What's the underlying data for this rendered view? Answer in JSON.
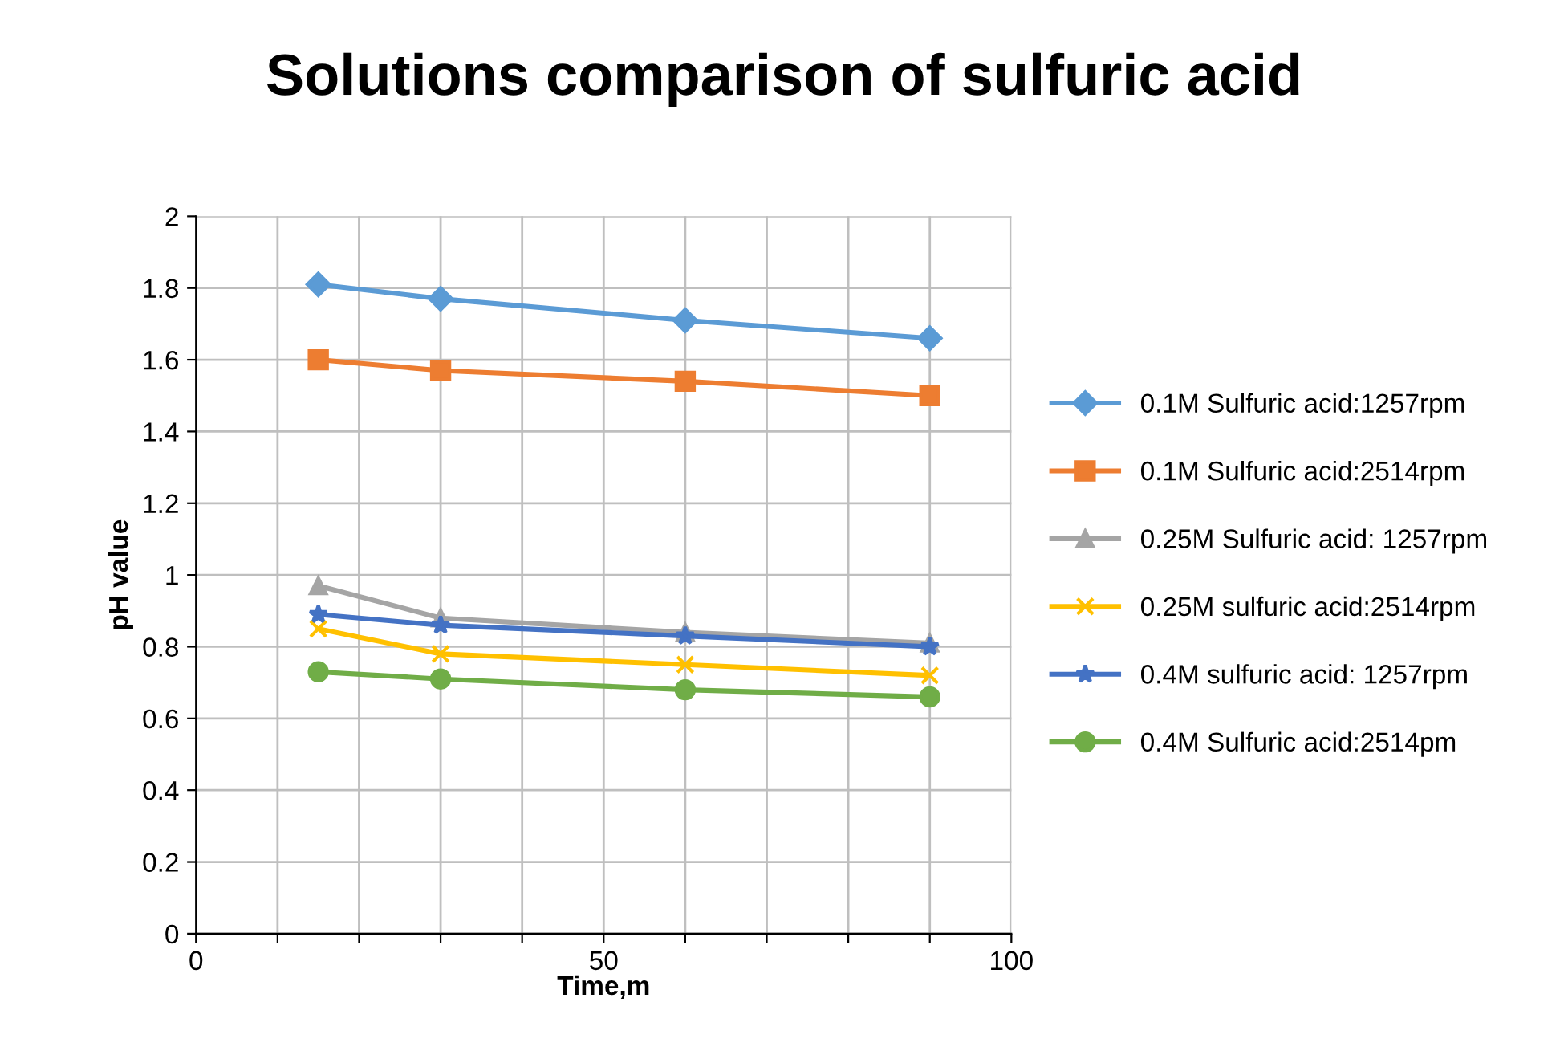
{
  "chart_data": {
    "type": "line",
    "title": "Solutions comparison of sulfuric acid",
    "xlabel": "Time,m",
    "ylabel": "pH value",
    "x": [
      15,
      30,
      60,
      90
    ],
    "series": [
      {
        "name": "0.1M Sulfuric acid:1257rpm",
        "color": "#5b9bd5",
        "marker": "diamond",
        "values": [
          1.81,
          1.77,
          1.71,
          1.66
        ]
      },
      {
        "name": "0.1M Sulfuric acid:2514rpm",
        "color": "#ed7d31",
        "marker": "square",
        "values": [
          1.6,
          1.57,
          1.54,
          1.5
        ]
      },
      {
        "name": "0.25M Sulfuric acid: 1257rpm",
        "color": "#a5a5a5",
        "marker": "triangle",
        "values": [
          0.97,
          0.88,
          0.84,
          0.81
        ]
      },
      {
        "name": "0.25M sulfuric acid:2514rpm",
        "color": "#ffc000",
        "marker": "cross",
        "values": [
          0.85,
          0.78,
          0.75,
          0.72
        ]
      },
      {
        "name": "0.4M sulfuric acid: 1257rpm",
        "color": "#4472c4",
        "marker": "star",
        "values": [
          0.89,
          0.86,
          0.83,
          0.8
        ]
      },
      {
        "name": "0.4M Sulfuric acid:2514pm",
        "color": "#70ad47",
        "marker": "circle",
        "values": [
          0.73,
          0.71,
          0.68,
          0.66
        ]
      }
    ],
    "xlim": [
      0,
      100
    ],
    "xticks": [
      0,
      {
        "value": 10,
        "label": null
      },
      {
        "value": 20,
        "label": null
      },
      {
        "value": 30,
        "label": null
      },
      {
        "value": 40,
        "label": null
      },
      50,
      {
        "value": 60,
        "label": null
      },
      {
        "value": 70,
        "label": null
      },
      {
        "value": 80,
        "label": null
      },
      {
        "value": 90,
        "label": null
      },
      100
    ],
    "ylim": [
      0,
      2
    ],
    "yticks": [
      0,
      0.2,
      0.4,
      0.6,
      0.8,
      1,
      1.2,
      1.4,
      1.6,
      1.8,
      2
    ],
    "grid": true,
    "legend": "right",
    "line_style": "solid"
  }
}
